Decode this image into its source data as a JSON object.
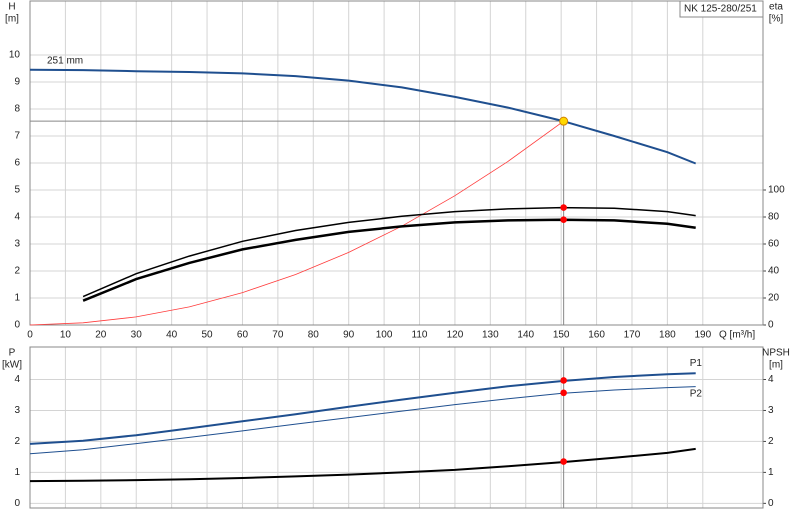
{
  "chart_data": [
    {
      "type": "line",
      "title": "NK 125-280/251",
      "ylabel": [
        "H",
        "[m]"
      ],
      "y2label": [
        "eta",
        "[%]"
      ],
      "xlabel": "Q [m³/h]",
      "xlim": [
        0,
        207
      ],
      "xticks": [
        0,
        10,
        20,
        30,
        40,
        50,
        60,
        70,
        80,
        90,
        100,
        110,
        120,
        130,
        140,
        150,
        160,
        170,
        180,
        190
      ],
      "ylim": [
        0,
        12
      ],
      "yticks": [
        0,
        1,
        2,
        3,
        4,
        5,
        6,
        7,
        8,
        9,
        10
      ],
      "y2lim": [
        0,
        240
      ],
      "y2ticks": [
        0,
        20,
        40,
        60,
        80,
        100
      ],
      "grid": true,
      "annotation": "251 mm",
      "duty_point": {
        "x": 150.7,
        "y": 7.55
      },
      "series": [
        {
          "color": "#1f4f8f",
          "width": 2,
          "x": [
            0,
            15,
            30,
            45,
            60,
            75,
            90,
            105,
            120,
            135,
            150,
            165,
            180,
            188
          ],
          "values": [
            9.45,
            9.44,
            9.4,
            9.37,
            9.32,
            9.22,
            9.05,
            8.8,
            8.45,
            8.05,
            7.57,
            7.0,
            6.4,
            5.98
          ]
        },
        {
          "color": "#ff3b3b",
          "width": 0.8,
          "x": [
            0,
            15,
            30,
            45,
            60,
            75,
            90,
            105,
            120,
            135,
            150.7
          ],
          "values": [
            0,
            0.08,
            0.3,
            0.67,
            1.2,
            1.87,
            2.69,
            3.66,
            4.79,
            6.06,
            7.55
          ]
        },
        {
          "color": "#000000",
          "width": 1.5,
          "axis": "y2",
          "x": [
            15,
            30,
            45,
            60,
            75,
            90,
            105,
            120,
            135,
            150,
            165,
            180,
            188
          ],
          "values": [
            21,
            38,
            51,
            62,
            70,
            76,
            80.5,
            84,
            86,
            87,
            86.5,
            84,
            81
          ]
        },
        {
          "color": "#000000",
          "width": 2.5,
          "axis": "y2",
          "x": [
            15,
            30,
            45,
            60,
            75,
            90,
            105,
            120,
            135,
            150,
            165,
            180,
            188
          ],
          "values": [
            18,
            34,
            46,
            56,
            63,
            69,
            73,
            76,
            77.5,
            78,
            77.5,
            75,
            72
          ]
        }
      ],
      "points": [
        {
          "x": 150.7,
          "y": 7.55,
          "color": "#ffd800"
        },
        {
          "x": 150.7,
          "y": 87,
          "axis": "y2",
          "color": "#ff0000"
        },
        {
          "x": 150.7,
          "y": 78,
          "axis": "y2",
          "color": "#ff0000"
        }
      ]
    },
    {
      "type": "line",
      "ylabel": [
        "P",
        "[kW]"
      ],
      "y2label": [
        "NPSH",
        "[m]"
      ],
      "xlim": [
        0,
        207
      ],
      "ylim": [
        -0.15,
        5.05
      ],
      "yticks": [
        0,
        1,
        2,
        3,
        4
      ],
      "y2lim": [
        -0.15,
        5.05
      ],
      "y2ticks": [
        0,
        1,
        2,
        3,
        4
      ],
      "grid": true,
      "series": [
        {
          "name": "P1",
          "color": "#1f4f8f",
          "width": 2,
          "x": [
            0,
            15,
            30,
            45,
            60,
            75,
            90,
            105,
            120,
            135,
            150,
            165,
            180,
            188
          ],
          "values": [
            1.92,
            2.02,
            2.2,
            2.42,
            2.65,
            2.88,
            3.12,
            3.35,
            3.57,
            3.78,
            3.95,
            4.08,
            4.17,
            4.2
          ]
        },
        {
          "name": "P2",
          "color": "#1f4f8f",
          "width": 1,
          "x": [
            0,
            15,
            30,
            45,
            60,
            75,
            90,
            105,
            120,
            135,
            150,
            165,
            180,
            188
          ],
          "values": [
            1.6,
            1.73,
            1.93,
            2.13,
            2.34,
            2.56,
            2.77,
            2.98,
            3.19,
            3.38,
            3.55,
            3.66,
            3.74,
            3.77
          ]
        },
        {
          "color": "#000000",
          "width": 2,
          "axis": "y2",
          "x": [
            0,
            15,
            30,
            45,
            60,
            75,
            90,
            105,
            120,
            135,
            150,
            165,
            180,
            188
          ],
          "values": [
            0.72,
            0.73,
            0.75,
            0.78,
            0.82,
            0.87,
            0.93,
            1.0,
            1.08,
            1.2,
            1.33,
            1.47,
            1.63,
            1.76
          ]
        }
      ],
      "points": [
        {
          "x": 150.7,
          "y": 3.97,
          "color": "#ff0000"
        },
        {
          "x": 150.7,
          "y": 3.57,
          "color": "#ff0000"
        },
        {
          "x": 150.7,
          "y": 1.35,
          "axis": "y2",
          "color": "#ff0000"
        }
      ]
    }
  ]
}
